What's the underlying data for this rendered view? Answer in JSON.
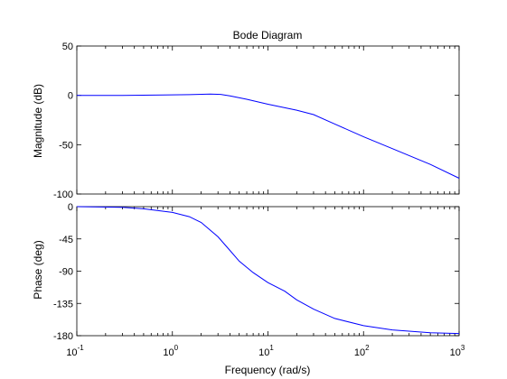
{
  "chart_data": {
    "type": "line",
    "title": "Bode Diagram",
    "xlabel": "Frequency  (rad/s)",
    "x_scale": "log",
    "xlim": [
      0.1,
      1000
    ],
    "x_tick_labels": [
      {
        "base": "10",
        "exp": "-1"
      },
      {
        "base": "10",
        "exp": "0"
      },
      {
        "base": "10",
        "exp": "1"
      },
      {
        "base": "10",
        "exp": "2"
      },
      {
        "base": "10",
        "exp": "3"
      }
    ],
    "x_tick_values": [
      0.1,
      1,
      10,
      100,
      1000
    ],
    "grid": false,
    "line_color": "#0000ff",
    "panels": [
      {
        "name": "magnitude",
        "ylabel": "Magnitude (dB)",
        "ylim": [
          -100,
          50
        ],
        "yticks": [
          50,
          0,
          -50,
          -100
        ],
        "ytick_labels": [
          "50",
          "0",
          "-50",
          "-100"
        ],
        "series": [
          {
            "x": [
              0.1,
              0.3,
              0.8,
              1.5,
              2.5,
              3.2,
              4,
              6,
              10,
              20,
              30,
              50,
              100,
              200,
              500,
              1000
            ],
            "y": [
              0,
              0,
              0.3,
              0.7,
              1.3,
              1.0,
              -0.5,
              -4,
              -9,
              -15,
              -19.5,
              -29,
              -42,
              -54,
              -70,
              -84
            ]
          }
        ]
      },
      {
        "name": "phase",
        "ylabel": "Phase (deg)",
        "ylim": [
          -180,
          0
        ],
        "yticks": [
          0,
          -45,
          -90,
          -135,
          -180
        ],
        "ytick_labels": [
          "0",
          "-45",
          "-90",
          "-135",
          "-180"
        ],
        "series": [
          {
            "x": [
              0.1,
              0.3,
              0.5,
              1,
              1.5,
              2,
              3,
              4,
              5,
              7,
              10,
              15,
              20,
              30,
              50,
              100,
              200,
              500,
              1000
            ],
            "y": [
              0,
              -1,
              -3,
              -8,
              -14,
              -22,
              -42,
              -61,
              -76,
              -92,
              -106,
              -118,
              -130,
              -143,
              -156,
              -166,
              -172,
              -176,
              -177
            ]
          }
        ]
      }
    ]
  }
}
